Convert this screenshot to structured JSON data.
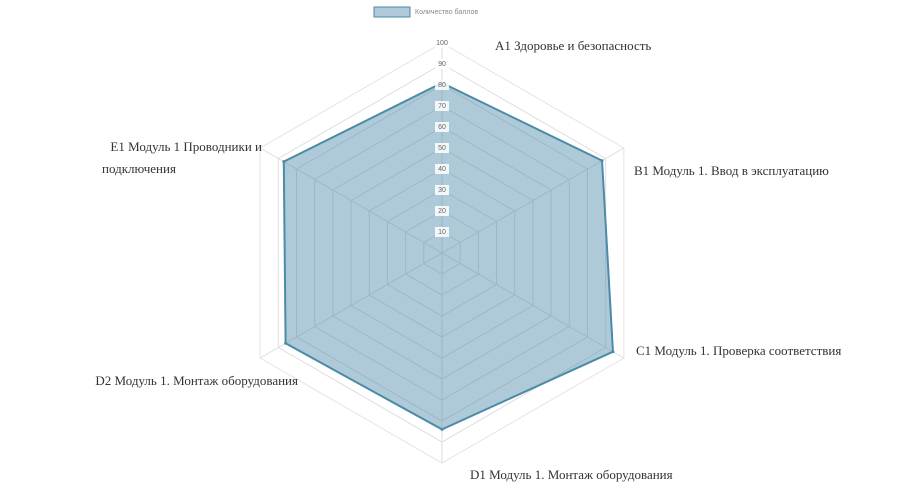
{
  "chart_data": {
    "type": "radar",
    "categories": [
      "A1 Здоровье и безопасность",
      "B1 Модуль 1. Ввод в эксплуатацию",
      "C1 Модуль 1. Проверка соответствия",
      "D1 Модуль 1. Монтаж оборудования",
      "D2 Модуль 1. Монтаж оборудования",
      [
        "E1 Модуль 1 Проводники и",
        "подключения"
      ]
    ],
    "series": [
      {
        "name": "Количество баллов",
        "color": "#4b8aa8",
        "values": [
          81,
          88,
          94,
          84,
          86,
          87
        ]
      }
    ],
    "rlim": [
      0,
      100
    ],
    "rticks": [
      10,
      20,
      30,
      40,
      50,
      60,
      70,
      80,
      90,
      100
    ],
    "grid": true
  }
}
